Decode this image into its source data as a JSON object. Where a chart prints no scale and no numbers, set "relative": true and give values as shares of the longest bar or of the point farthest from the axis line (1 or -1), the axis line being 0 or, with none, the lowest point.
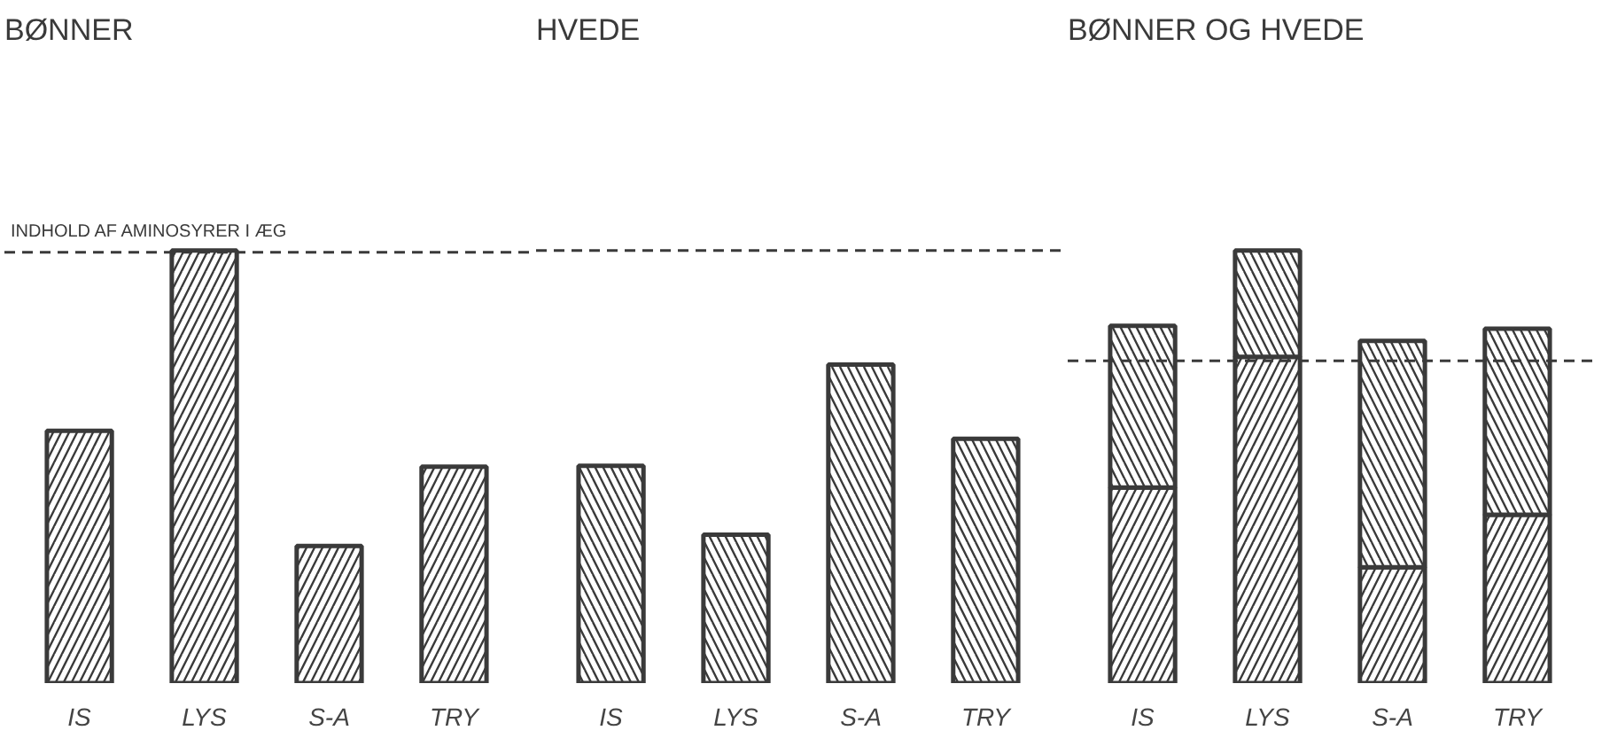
{
  "chart_data": [
    {
      "type": "bar",
      "title": "BØNNER",
      "categories": [
        "IS",
        "LYS",
        "S-A",
        "TRY"
      ],
      "relative": true,
      "series": [
        {
          "color": "#3a3a3a",
          "values": [
            0.583,
            1,
            0.317,
            0.5
          ]
        }
      ],
      "ref_lines": [
        {
          "axis": "y",
          "value": 0.996,
          "label": "INDHOLD AF AMINOSYRER I ÆG",
          "line_style": "dashed",
          "color": "#3a3a3a"
        }
      ]
    },
    {
      "type": "bar",
      "title": "HVEDE",
      "categories": [
        "IS",
        "LYS",
        "S-A",
        "TRY"
      ],
      "relative": true,
      "series": [
        {
          "color": "#3a3a3a",
          "values": [
            0.682,
            0.466,
            1,
            0.767
          ]
        }
      ],
      "ref_lines": [
        {
          "axis": "y",
          "value": 1.358,
          "line_style": "dashed",
          "color": "#3a3a3a"
        }
      ]
    },
    {
      "type": "bar",
      "title": "BØNNER OG HVEDE",
      "categories": [
        "IS",
        "LYS",
        "S-A",
        "TRY"
      ],
      "relative": true,
      "stacked": true,
      "series": [
        {
          "color": "#3a3a3a",
          "values": [
            0.452,
            0.754,
            0.268,
            0.389
          ]
        },
        {
          "color": "#3a3a3a",
          "values": [
            0.374,
            0.246,
            0.523,
            0.43
          ]
        }
      ],
      "ref_lines": [
        {
          "axis": "y",
          "value": 0.745,
          "line_style": "dashed",
          "color": "#3a3a3a"
        }
      ]
    }
  ]
}
